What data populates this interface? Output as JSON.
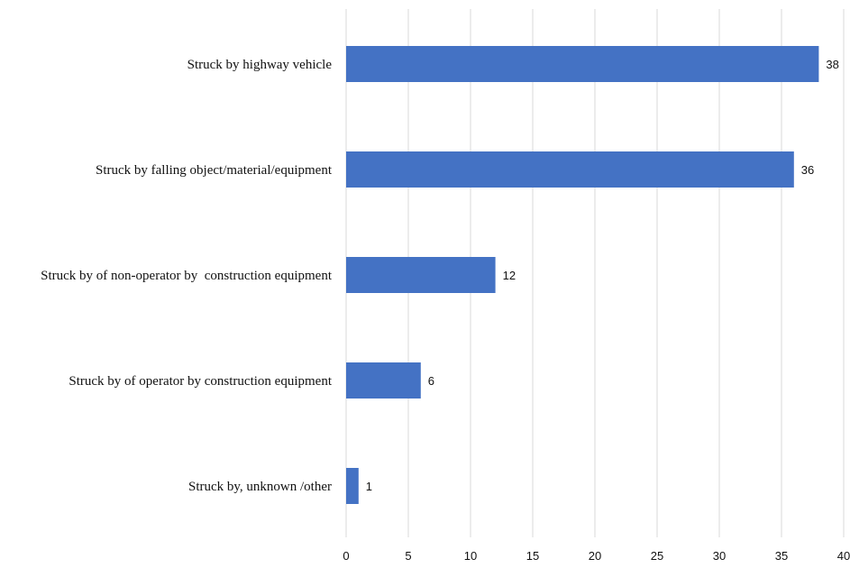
{
  "chart_data": {
    "type": "bar",
    "orientation": "horizontal",
    "categories": [
      "Struck by highway vehicle",
      "Struck by falling object/material/equipment",
      "Struck by of non-operator by  construction equipment",
      "Struck by of operator by construction equipment",
      "Struck by, unknown /other"
    ],
    "values": [
      38,
      36,
      12,
      6,
      1
    ],
    "data_labels": [
      "38",
      "36",
      "12",
      "6",
      "1"
    ],
    "x_ticks": [
      0,
      5,
      10,
      15,
      20,
      25,
      30,
      35,
      40
    ],
    "x_tick_labels": [
      "0",
      "5",
      "10",
      "15",
      "20",
      "25",
      "30",
      "35",
      "40"
    ],
    "xlim": [
      0,
      40
    ],
    "title": "",
    "xlabel": "",
    "ylabel": "",
    "grid": "vertical",
    "legend": "none",
    "bar_color": "#4472c4"
  }
}
